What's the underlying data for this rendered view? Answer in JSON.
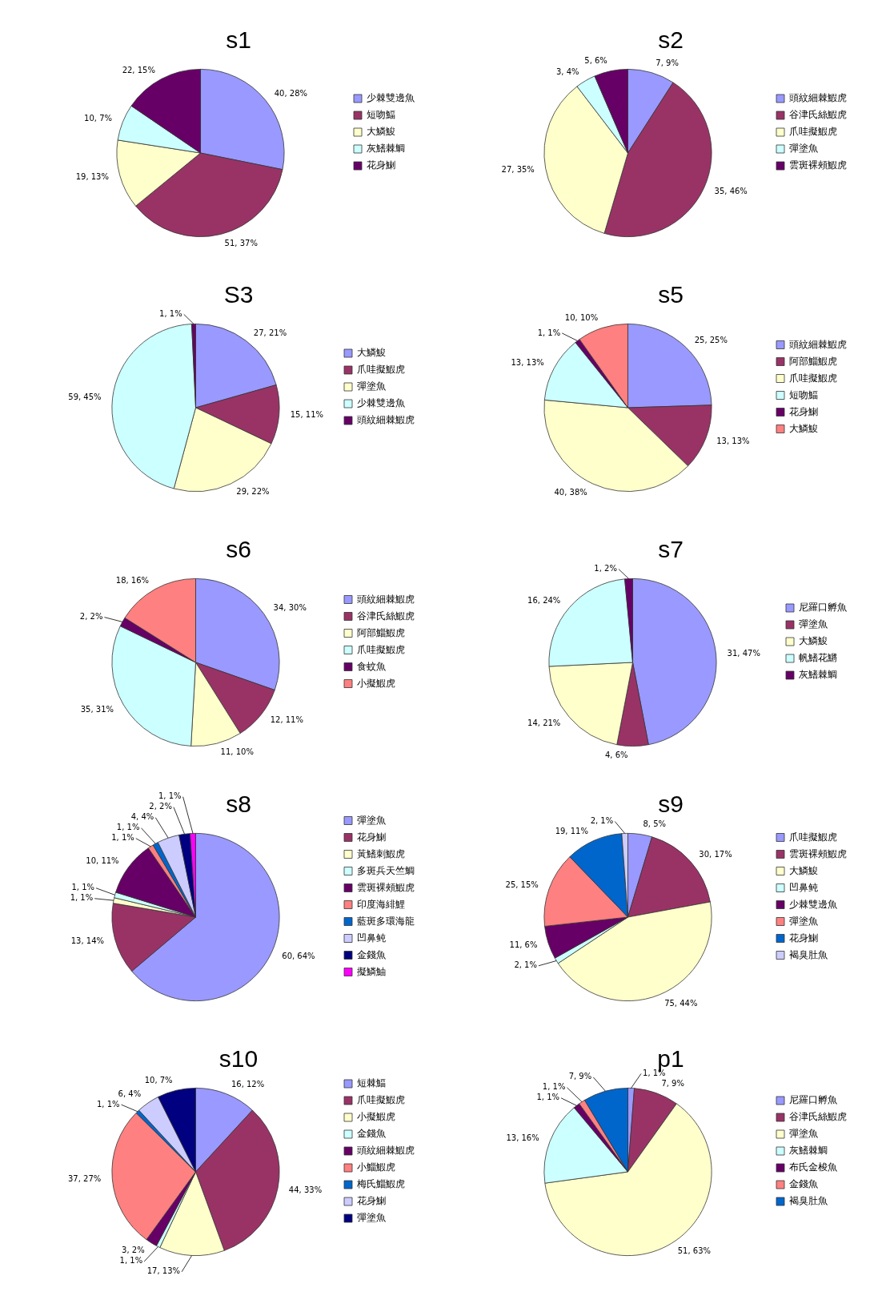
{
  "chart_data": [
    {
      "type": "pie",
      "title": "s1",
      "legend": "right",
      "categories": [
        "少棘雙邊魚",
        "短吻鰏",
        "大鱗鮻",
        "灰鰭棘鯛",
        "花身鯻"
      ],
      "values": [
        40,
        51,
        19,
        10,
        22
      ],
      "colors": [
        "#9999ff",
        "#993366",
        "#ffffcc",
        "#ccffff",
        "#660066"
      ],
      "value_labels": [
        "40, 28%",
        "51, 37%",
        "19, 13%",
        "10, 7%",
        "22, 15%"
      ]
    },
    {
      "type": "pie",
      "title": "s2",
      "legend": "right",
      "categories": [
        "頭紋細棘鰕虎",
        "谷津氏絲鰕虎",
        "爪哇擬鰕虎",
        "彈塗魚",
        "雲斑裸頰鰕虎"
      ],
      "values": [
        7,
        35,
        27,
        3,
        5
      ],
      "colors": [
        "#9999ff",
        "#993366",
        "#ffffcc",
        "#ccffff",
        "#660066"
      ],
      "value_labels": [
        "7, 9%",
        "35, 46%",
        "27, 35%",
        "3, 4%",
        "5, 6%"
      ]
    },
    {
      "type": "pie",
      "title": "S3",
      "legend": "right",
      "categories": [
        "大鱗鮻",
        "爪哇擬鰕虎",
        "彈塗魚",
        "少棘雙邊魚",
        "頭紋細棘鰕虎"
      ],
      "values": [
        27,
        15,
        29,
        59,
        1
      ],
      "colors": [
        "#9999ff",
        "#993366",
        "#ffffcc",
        "#ccffff",
        "#660066"
      ],
      "value_labels": [
        "27, 21%",
        "15, 11%",
        "29, 22%",
        "59, 45%",
        "1, 1%"
      ]
    },
    {
      "type": "pie",
      "title": "s5",
      "legend": "right",
      "categories": [
        "頭紋細棘鰕虎",
        "阿部鯔鰕虎",
        "爪哇擬鰕虎",
        "短吻鰏",
        "花身鯻",
        "大鱗鮻"
      ],
      "values": [
        25,
        13,
        40,
        13,
        1,
        10
      ],
      "colors": [
        "#9999ff",
        "#993366",
        "#ffffcc",
        "#ccffff",
        "#660066",
        "#ff8080"
      ],
      "value_labels": [
        "25, 25%",
        "13, 13%",
        "40, 38%",
        "13, 13%",
        "1, 1%",
        "10, 10%"
      ]
    },
    {
      "type": "pie",
      "title": "s6",
      "legend": "right",
      "categories": [
        "頭紋細棘鰕虎",
        "谷津氏絲鰕虎",
        "阿部鯔鰕虎",
        "爪哇擬鰕虎",
        "食蚊魚",
        "小擬鰕虎"
      ],
      "values": [
        34,
        12,
        11,
        35,
        2,
        18
      ],
      "colors": [
        "#9999ff",
        "#993366",
        "#ffffcc",
        "#ccffff",
        "#660066",
        "#ff8080"
      ],
      "value_labels": [
        "34, 30%",
        "12, 11%",
        "11, 10%",
        "35, 31%",
        "2, 2%",
        "18, 16%"
      ]
    },
    {
      "type": "pie",
      "title": "s7",
      "legend": "right",
      "categories": [
        "尼羅口孵魚",
        "彈塗魚",
        "大鱗鮻",
        "帆鰭花鱂",
        "灰鰭棘鯛"
      ],
      "values": [
        31,
        4,
        14,
        16,
        1
      ],
      "colors": [
        "#9999ff",
        "#993366",
        "#ffffcc",
        "#ccffff",
        "#660066"
      ],
      "value_labels": [
        "31, 47%",
        "4, 6%",
        "14, 21%",
        "16, 24%",
        "1, 2%"
      ]
    },
    {
      "type": "pie",
      "title": "s8",
      "legend": "right",
      "categories": [
        "彈塗魚",
        "花身鯻",
        "黃鰭刺鰕虎",
        "多斑兵天竺鯛",
        "雲斑裸頰鰕虎",
        "印度海緋鯉",
        "藍斑多環海龍",
        "凹鼻鲀",
        "金錢魚",
        "擬鱗鮋"
      ],
      "values": [
        60,
        13,
        1,
        1,
        10,
        1,
        1,
        4,
        2,
        1
      ],
      "colors": [
        "#9999ff",
        "#993366",
        "#ffffcc",
        "#ccffff",
        "#660066",
        "#ff8080",
        "#0066cc",
        "#ccccff",
        "#000080",
        "#ff00ff"
      ],
      "value_labels": [
        "60, 64%",
        "13, 14%",
        "1, 1%",
        "1, 1%",
        "10, 11%",
        "1, 1%",
        "1, 1%",
        "4, 4%",
        "2, 2%",
        "1, 1%"
      ]
    },
    {
      "type": "pie",
      "title": "s9",
      "legend": "right",
      "categories": [
        "爪哇擬鰕虎",
        "雲斑裸頰鰕虎",
        "大鱗鮻",
        "凹鼻鲀",
        "少棘雙邊魚",
        "彈塗魚",
        "花身鯻",
        "褐臭肚魚"
      ],
      "values": [
        8,
        30,
        75,
        2,
        11,
        25,
        19,
        2
      ],
      "colors": [
        "#9999ff",
        "#993366",
        "#ffffcc",
        "#ccffff",
        "#660066",
        "#ff8080",
        "#0066cc",
        "#ccccff"
      ],
      "value_labels": [
        "8, 5%",
        "30, 17%",
        "75, 44%",
        "2, 1%",
        "11, 6%",
        "25, 15%",
        "19, 11%",
        "2, 1%"
      ]
    },
    {
      "type": "pie",
      "title": "s10",
      "legend": "right",
      "categories": [
        "短棘鰏",
        "爪哇擬鰕虎",
        "小擬鰕虎",
        "金錢魚",
        "頭紋細棘鰕虎",
        "小鯔鰕虎",
        "梅氏鯔鰕虎",
        "花身鯻",
        "彈塗魚"
      ],
      "values": [
        16,
        44,
        17,
        1,
        3,
        37,
        1,
        6,
        10
      ],
      "colors": [
        "#9999ff",
        "#993366",
        "#ffffcc",
        "#ccffff",
        "#660066",
        "#ff8080",
        "#0066cc",
        "#ccccff",
        "#000080"
      ],
      "value_labels": [
        "16, 12%",
        "44, 33%",
        "17, 13%",
        "1, 1%",
        "3, 2%",
        "37, 27%",
        "1, 1%",
        "6, 4%",
        "10, 7%"
      ]
    },
    {
      "type": "pie",
      "title": "p1",
      "legend": "right",
      "categories": [
        "尼羅口孵魚",
        "谷津氏絲鰕虎",
        "彈塗魚",
        "灰鰭棘鯛",
        "布氏金梭魚",
        "金錢魚",
        "褐臭肚魚"
      ],
      "values": [
        1,
        7,
        51,
        13,
        1,
        1,
        7
      ],
      "colors": [
        "#9999ff",
        "#993366",
        "#ffffcc",
        "#ccffff",
        "#660066",
        "#ff8080",
        "#0066cc"
      ],
      "value_labels": [
        "1, 1%",
        "7, 9%",
        "51, 63%",
        "13, 16%",
        "1, 1%",
        "1, 1%",
        "7, 9%"
      ]
    }
  ]
}
